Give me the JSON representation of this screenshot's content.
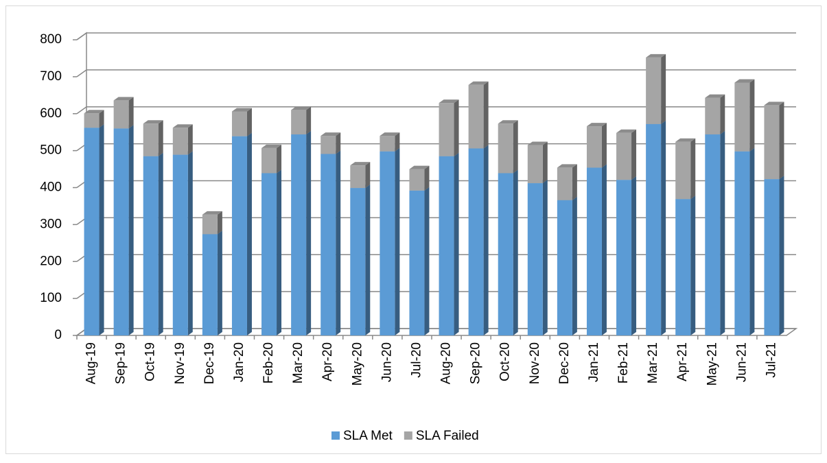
{
  "chart_data": {
    "type": "bar",
    "stacked": true,
    "categories": [
      "Aug-19",
      "Sep-19",
      "Oct-19",
      "Nov-19",
      "Dec-19",
      "Jan-20",
      "Feb-20",
      "Mar-20",
      "Apr-20",
      "May-20",
      "Jun-20",
      "Jul-20",
      "Aug-20",
      "Sep-20",
      "Oct-20",
      "Nov-20",
      "Dec-20",
      "Jan-21",
      "Feb-21",
      "Mar-21",
      "Apr-21",
      "May-21",
      "Jun-21",
      "Jul-21"
    ],
    "series": [
      {
        "name": "SLA Met",
        "color": "#5b9bd5",
        "values": [
          562,
          560,
          485,
          489,
          274,
          539,
          439,
          544,
          491,
          399,
          498,
          392,
          485,
          506,
          439,
          412,
          366,
          454,
          421,
          572,
          369,
          544,
          498,
          423
        ]
      },
      {
        "name": "SLA Failed",
        "color": "#a5a5a5",
        "values": [
          39,
          76,
          88,
          73,
          53,
          67,
          68,
          66,
          49,
          61,
          42,
          58,
          144,
          172,
          134,
          103,
          88,
          112,
          127,
          180,
          155,
          99,
          186,
          200
        ]
      }
    ],
    "ylim": [
      0,
      800
    ],
    "yticks": [
      0,
      100,
      200,
      300,
      400,
      500,
      600,
      700,
      800
    ],
    "grid": true,
    "legend": "bottom"
  }
}
